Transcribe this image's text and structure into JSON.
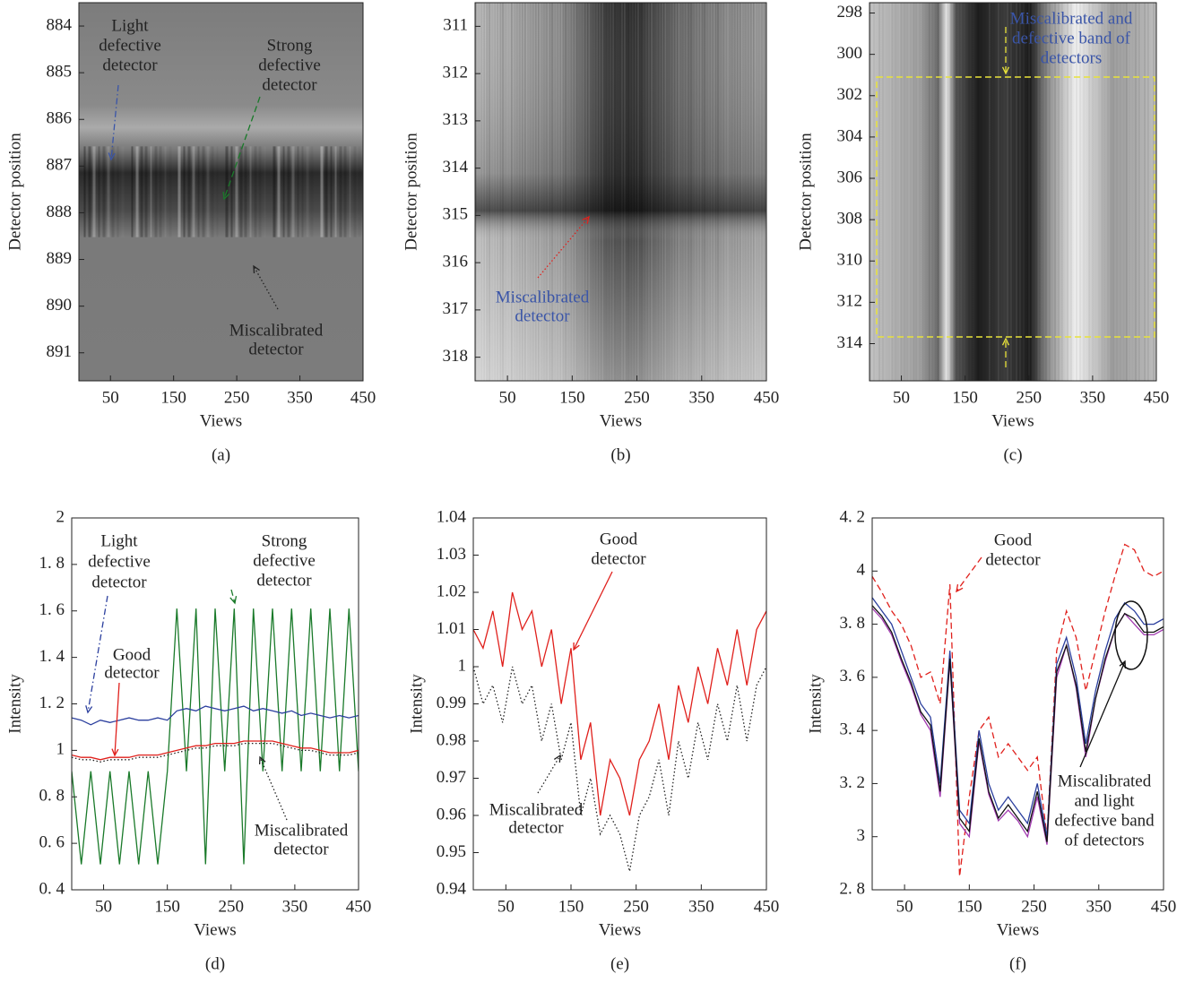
{
  "chart_data": [
    {
      "type": "image",
      "caption": "(a)",
      "xlabel": "Views",
      "ylabel": "Detector position",
      "xlim": [
        0,
        450
      ],
      "xticks": [
        50,
        150,
        250,
        350,
        450
      ],
      "ylim": [
        891.6,
        883.5
      ],
      "yticks": [
        884,
        885,
        886,
        887,
        888,
        889,
        890,
        891
      ],
      "annotations": [
        {
          "text": [
            "Light",
            "defective",
            "detector"
          ],
          "color": "#222222"
        },
        {
          "text": [
            "Strong",
            "defective",
            "detector"
          ],
          "color": "#222222"
        },
        {
          "text": [
            "Miscalibrated",
            "detector"
          ],
          "color": "#222222"
        }
      ]
    },
    {
      "type": "image",
      "caption": "(b)",
      "xlabel": "Views",
      "ylabel": "Detector position",
      "xlim": [
        0,
        450
      ],
      "xticks": [
        50,
        150,
        250,
        350,
        450
      ],
      "ylim": [
        318.5,
        310.5
      ],
      "yticks": [
        311,
        312,
        313,
        314,
        315,
        316,
        317,
        318
      ],
      "annotations": [
        {
          "text": [
            "Miscalibrated",
            "detector"
          ],
          "color": "#3a55a8"
        }
      ]
    },
    {
      "type": "image",
      "caption": "(c)",
      "xlabel": "Views",
      "ylabel": "Detector position",
      "xlim": [
        0,
        450
      ],
      "xticks": [
        50,
        150,
        250,
        350,
        450
      ],
      "ylim": [
        315.8,
        297.5
      ],
      "yticks": [
        298,
        300,
        302,
        304,
        306,
        308,
        310,
        312,
        314
      ],
      "annotations": [
        {
          "text": [
            "Miscalibrated and",
            "defective band of",
            "detectors"
          ],
          "color": "#3a55a8"
        }
      ]
    },
    {
      "type": "line",
      "caption": "(d)",
      "xlabel": "Views",
      "ylabel": "Intensity",
      "xlim": [
        0,
        450
      ],
      "xticks": [
        50,
        150,
        250,
        350,
        450
      ],
      "ylim": [
        0.4,
        2
      ],
      "yticks": [
        {
          "value": 0.4,
          "label": "0. 4"
        },
        {
          "value": 0.6,
          "label": "0. 6"
        },
        {
          "value": 0.8,
          "label": "0. 8"
        },
        1,
        {
          "value": 1.2,
          "label": "1. 2"
        },
        {
          "value": 1.4,
          "label": "1. 4"
        },
        {
          "value": 1.6,
          "label": "1. 6"
        },
        {
          "value": 1.8,
          "label": "1. 8"
        },
        2
      ],
      "x": [
        0,
        15,
        30,
        45,
        60,
        75,
        90,
        105,
        120,
        135,
        150,
        165,
        180,
        195,
        210,
        225,
        240,
        255,
        270,
        285,
        300,
        315,
        330,
        345,
        360,
        375,
        390,
        405,
        420,
        435,
        450
      ],
      "series": [
        {
          "color": "#1a7a2a",
          "dash": "solid",
          "values": [
            0.91,
            0.51,
            0.91,
            0.51,
            0.91,
            0.51,
            0.91,
            0.51,
            0.91,
            0.51,
            0.91,
            1.61,
            0.91,
            1.61,
            0.51,
            1.61,
            0.91,
            1.61,
            0.51,
            1.61,
            0.91,
            1.61,
            0.91,
            1.61,
            0.91,
            1.61,
            0.91,
            1.61,
            0.91,
            1.61,
            0.91
          ]
        },
        {
          "color": "#2b3f9e",
          "dash": "solid",
          "values": [
            1.14,
            1.13,
            1.11,
            1.13,
            1.12,
            1.13,
            1.14,
            1.13,
            1.13,
            1.14,
            1.13,
            1.17,
            1.18,
            1.17,
            1.19,
            1.18,
            1.17,
            1.18,
            1.19,
            1.17,
            1.18,
            1.17,
            1.16,
            1.17,
            1.15,
            1.16,
            1.15,
            1.14,
            1.15,
            1.14,
            1.15
          ]
        },
        {
          "color": "#222222",
          "dash": "dotted",
          "values": [
            0.97,
            0.96,
            0.96,
            0.95,
            0.96,
            0.96,
            0.96,
            0.97,
            0.97,
            0.97,
            0.98,
            0.99,
            1.0,
            1.01,
            1.01,
            1.02,
            1.02,
            1.02,
            1.03,
            1.03,
            1.03,
            1.03,
            1.02,
            1.01,
            1.0,
            1.0,
            0.99,
            0.98,
            0.98,
            0.98,
            0.99
          ]
        },
        {
          "color": "#e0201c",
          "dash": "solid",
          "values": [
            0.98,
            0.97,
            0.97,
            0.96,
            0.97,
            0.97,
            0.97,
            0.98,
            0.98,
            0.98,
            0.99,
            1.0,
            1.01,
            1.02,
            1.02,
            1.03,
            1.03,
            1.03,
            1.04,
            1.04,
            1.04,
            1.04,
            1.03,
            1.02,
            1.01,
            1.01,
            1.0,
            0.99,
            0.99,
            0.99,
            1.0
          ]
        }
      ],
      "annotations": [
        {
          "text": [
            "Light",
            "defective",
            "detector"
          ],
          "color": "#222222"
        },
        {
          "text": [
            "Strong",
            "defective",
            "detector"
          ],
          "color": "#222222"
        },
        {
          "text": [
            "Good",
            "detector"
          ],
          "color": "#222222"
        },
        {
          "text": [
            "Miscalibrated",
            "detector"
          ],
          "color": "#222222"
        }
      ]
    },
    {
      "type": "line",
      "caption": "(e)",
      "xlabel": "Views",
      "ylabel": "Intensity",
      "xlim": [
        0,
        450
      ],
      "xticks": [
        50,
        150,
        250,
        350,
        450
      ],
      "ylim": [
        0.94,
        1.04
      ],
      "yticks": [
        0.94,
        0.95,
        0.96,
        0.97,
        0.98,
        0.99,
        1,
        1.01,
        1.02,
        1.03,
        1.04
      ],
      "x": [
        0,
        15,
        30,
        45,
        60,
        75,
        90,
        105,
        120,
        135,
        150,
        165,
        180,
        195,
        210,
        225,
        240,
        255,
        270,
        285,
        300,
        315,
        330,
        345,
        360,
        375,
        390,
        405,
        420,
        435,
        450
      ],
      "series": [
        {
          "color": "#222222",
          "dash": "dotted",
          "values": [
            1.0,
            0.99,
            0.995,
            0.985,
            1.0,
            0.99,
            0.995,
            0.98,
            0.99,
            0.975,
            0.985,
            0.96,
            0.97,
            0.955,
            0.96,
            0.955,
            0.945,
            0.96,
            0.965,
            0.975,
            0.96,
            0.98,
            0.97,
            0.985,
            0.975,
            0.99,
            0.98,
            0.995,
            0.98,
            0.995,
            1.0
          ]
        },
        {
          "color": "#e0201c",
          "dash": "solid",
          "values": [
            1.01,
            1.005,
            1.015,
            1.0,
            1.02,
            1.01,
            1.015,
            1.0,
            1.01,
            0.99,
            1.005,
            0.975,
            0.985,
            0.96,
            0.975,
            0.97,
            0.96,
            0.975,
            0.98,
            0.99,
            0.975,
            0.995,
            0.985,
            1.0,
            0.99,
            1.005,
            0.995,
            1.01,
            0.995,
            1.01,
            1.015
          ]
        }
      ],
      "annotations": [
        {
          "text": [
            "Good",
            "detector"
          ],
          "color": "#222222"
        },
        {
          "text": [
            "Miscalibrated",
            "detector"
          ],
          "color": "#222222"
        }
      ]
    },
    {
      "type": "line",
      "caption": "(f)",
      "xlabel": "Views",
      "ylabel": "Intensity",
      "xlim": [
        0,
        450
      ],
      "xticks": [
        50,
        150,
        250,
        350,
        450
      ],
      "ylim": [
        2.8,
        4.2
      ],
      "yticks": [
        {
          "value": 2.8,
          "label": "2. 8"
        },
        3,
        {
          "value": 3.2,
          "label": "3. 2"
        },
        {
          "value": 3.4,
          "label": "3. 4"
        },
        {
          "value": 3.6,
          "label": "3. 6"
        },
        {
          "value": 3.8,
          "label": "3. 8"
        },
        4,
        {
          "value": 4.2,
          "label": "4. 2"
        }
      ],
      "x": [
        0,
        15,
        30,
        45,
        60,
        75,
        90,
        105,
        120,
        135,
        150,
        165,
        180,
        195,
        210,
        225,
        240,
        255,
        270,
        285,
        300,
        315,
        330,
        345,
        360,
        375,
        390,
        405,
        420,
        435,
        450
      ],
      "series": [
        {
          "color": "#e0201c",
          "dash": "dashed",
          "values": [
            3.98,
            3.92,
            3.85,
            3.8,
            3.72,
            3.6,
            3.62,
            3.5,
            3.95,
            2.85,
            3.15,
            3.4,
            3.45,
            3.3,
            3.35,
            3.3,
            3.25,
            3.3,
            3.0,
            3.7,
            3.85,
            3.75,
            3.55,
            3.7,
            3.85,
            3.98,
            4.1,
            4.08,
            4.0,
            3.98,
            4.0
          ]
        },
        {
          "color": "#a23ab0",
          "dash": "solid",
          "values": [
            3.86,
            3.82,
            3.76,
            3.66,
            3.57,
            3.46,
            3.4,
            3.15,
            3.66,
            3.05,
            3.0,
            3.36,
            3.16,
            3.06,
            3.1,
            3.06,
            3.0,
            3.15,
            2.97,
            3.6,
            3.72,
            3.56,
            3.3,
            3.52,
            3.66,
            3.78,
            3.84,
            3.8,
            3.76,
            3.76,
            3.78
          ]
        },
        {
          "color": "#2b3f9e",
          "dash": "solid",
          "values": [
            3.9,
            3.85,
            3.8,
            3.7,
            3.6,
            3.5,
            3.45,
            3.2,
            3.7,
            3.1,
            3.05,
            3.4,
            3.2,
            3.1,
            3.15,
            3.1,
            3.05,
            3.2,
            3.0,
            3.65,
            3.75,
            3.6,
            3.35,
            3.55,
            3.7,
            3.82,
            3.88,
            3.85,
            3.8,
            3.8,
            3.82
          ]
        },
        {
          "color": "#111111",
          "dash": "solid",
          "values": [
            3.87,
            3.83,
            3.77,
            3.67,
            3.58,
            3.47,
            3.42,
            3.17,
            3.67,
            3.07,
            3.02,
            3.37,
            3.17,
            3.07,
            3.12,
            3.07,
            3.02,
            3.17,
            2.98,
            3.62,
            3.72,
            3.57,
            3.32,
            3.52,
            3.67,
            3.78,
            3.84,
            3.82,
            3.77,
            3.77,
            3.79
          ]
        }
      ],
      "annotations": [
        {
          "text": [
            "Good",
            "detector"
          ],
          "color": "#222222"
        },
        {
          "text": [
            "Miscalibrated",
            "and light",
            "defective band",
            "of detectors"
          ],
          "color": "#222222"
        }
      ]
    }
  ]
}
